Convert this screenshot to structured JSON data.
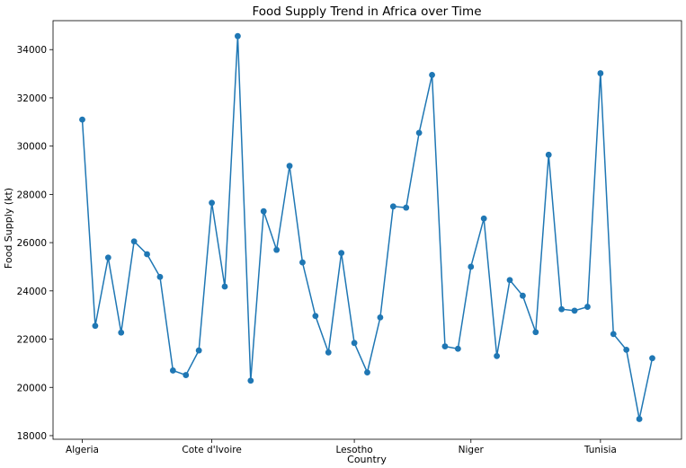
{
  "chart_data": {
    "type": "line",
    "title": "Food Supply Trend in Africa over Time",
    "xlabel": "Country",
    "ylabel": "Food Supply (kt)",
    "x_ticks": [
      {
        "index": 0,
        "label": "Algeria"
      },
      {
        "index": 10,
        "label": "Cote d'Ivoire"
      },
      {
        "index": 21,
        "label": "Lesotho"
      },
      {
        "index": 30,
        "label": "Niger"
      },
      {
        "index": 40,
        "label": "Tunisia"
      }
    ],
    "ylim": [
      17850,
      35200
    ],
    "y_ticks": [
      18000,
      20000,
      22000,
      24000,
      26000,
      28000,
      30000,
      32000,
      34000
    ],
    "grid": false,
    "color": "#1f77b4",
    "values": [
      31100,
      22550,
      25380,
      22270,
      26050,
      25520,
      24580,
      20700,
      20510,
      21530,
      27650,
      24180,
      34560,
      20280,
      27300,
      25700,
      29180,
      25180,
      22960,
      21450,
      25570,
      21840,
      20620,
      22900,
      27500,
      27450,
      30550,
      32950,
      21700,
      21600,
      25000,
      27000,
      21300,
      24450,
      23800,
      22290,
      29640,
      23240,
      23180,
      23340,
      33020,
      22210,
      21560,
      18690,
      21210
    ]
  }
}
